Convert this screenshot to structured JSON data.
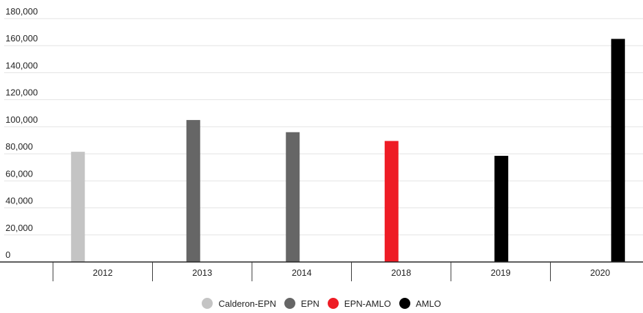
{
  "chart_data": {
    "type": "bar",
    "categories": [
      "2012",
      "2013",
      "2014",
      "2018",
      "2019",
      "2020"
    ],
    "series": [
      {
        "name": "Calderon-EPN",
        "color": "#c4c4c4",
        "values": [
          81500,
          null,
          null,
          null,
          null,
          null
        ]
      },
      {
        "name": "EPN",
        "color": "#666666",
        "values": [
          null,
          105000,
          96000,
          null,
          null,
          null
        ]
      },
      {
        "name": "EPN-AMLO",
        "color": "#ee1c25",
        "values": [
          null,
          null,
          null,
          89500,
          null,
          null
        ]
      },
      {
        "name": "AMLO",
        "color": "#000000",
        "values": [
          null,
          null,
          null,
          null,
          78500,
          165000
        ]
      }
    ],
    "yticks": [
      "0",
      "20,000",
      "40,000",
      "60,000",
      "80,000",
      "100,000",
      "120,000",
      "140,000",
      "160,000",
      "180,000"
    ],
    "ylim": [
      0,
      180000
    ],
    "grid": true,
    "legend_position": "bottom-center",
    "title": "",
    "xlabel": "",
    "ylabel": ""
  }
}
